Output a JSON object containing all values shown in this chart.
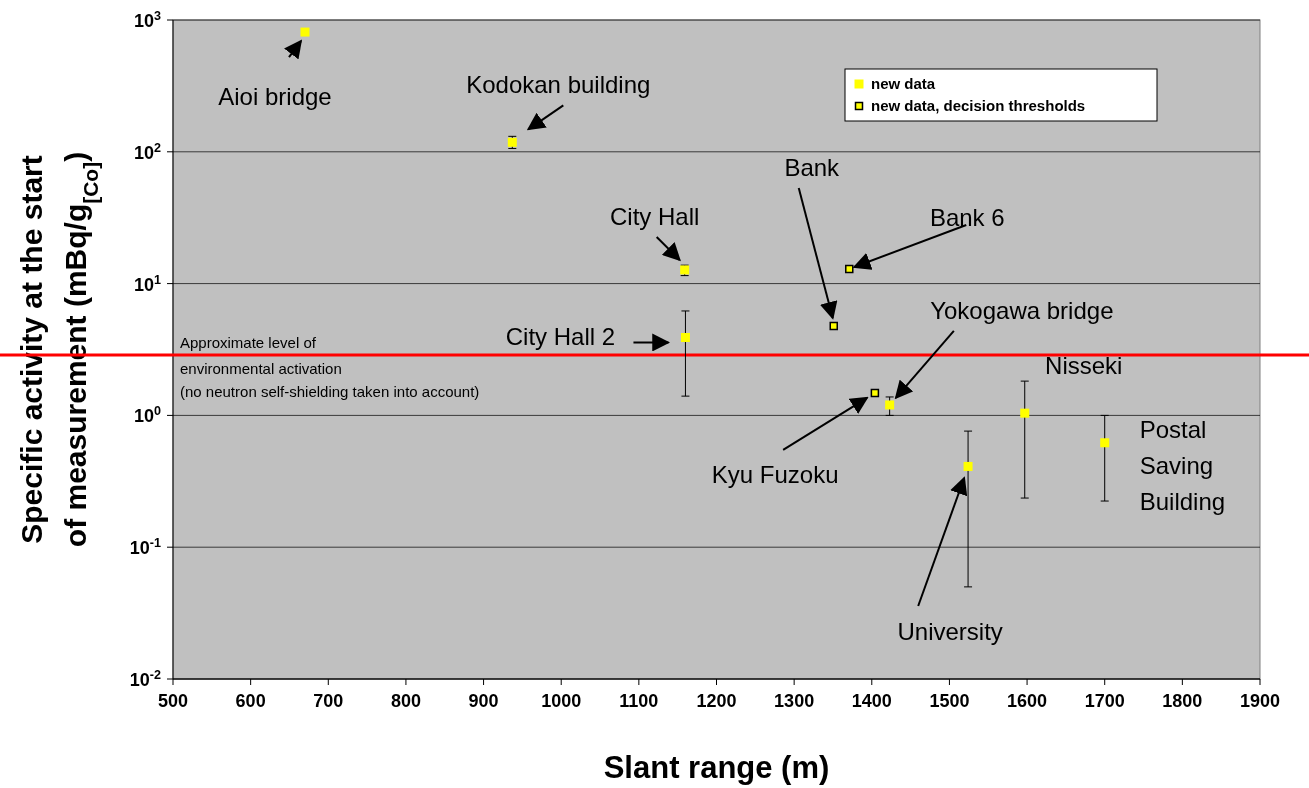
{
  "chart_data": {
    "type": "scatter",
    "xlabel": "Slant range (m)",
    "ylabel": "Specific activity at the start of measurement (mBq/g$_{[Co]}$)",
    "xlim": [
      500,
      1900
    ],
    "xticks": [
      500,
      600,
      700,
      800,
      900,
      1000,
      1100,
      1200,
      1300,
      1400,
      1500,
      1600,
      1700,
      1800,
      1900
    ],
    "ylim": [
      0.01,
      1000
    ],
    "yticks": [
      {
        "value": 0.01,
        "label": "10$^{-2}$"
      },
      {
        "value": 0.1,
        "label": "10$^{-1}$"
      },
      {
        "value": 1,
        "label": "10$^{0}$"
      },
      {
        "value": 10,
        "label": "10$^{1}$"
      },
      {
        "value": 100,
        "label": "10$^{2}$"
      },
      {
        "value": 1000,
        "label": "10$^{3}$"
      }
    ],
    "log": "y",
    "grid": "y",
    "legend": "top right",
    "marker": "square",
    "series": [
      {
        "name": "new data",
        "color": "#ffff00",
        "x": [
          670,
          937,
          1159,
          1160,
          1423,
          1524,
          1597,
          1700
        ],
        "values": [
          810,
          118,
          12.7,
          3.9,
          1.2,
          0.41,
          1.04,
          0.62
        ],
        "errors": [
          null,
          [
            106,
            131
          ],
          [
            11.5,
            13.8
          ],
          [
            1.4,
            6.2
          ],
          [
            1.0,
            1.38
          ],
          [
            0.05,
            0.76
          ],
          [
            0.236,
            1.82
          ],
          [
            0.224,
            1.0
          ]
        ]
      },
      {
        "name": "new data, decision thresholds",
        "color": "#ffff00",
        "x": [
          1351,
          1371,
          1404
        ],
        "values": [
          4.76,
          12.9,
          1.48
        ]
      }
    ],
    "ref_lines": [
      {
        "axis": "y",
        "value": 2.87,
        "label": "Approximate level of\nenvironmental activation\n(no neutron self-shielding taken into account)",
        "color": "#ff0000"
      }
    ],
    "annotations": [
      {
        "text": "Aioi bridge",
        "x": 670,
        "y": 810
      },
      {
        "text": "Kodokan building",
        "x": 937,
        "y": 118
      },
      {
        "text": "City Hall",
        "x": 1159,
        "y": 12.7
      },
      {
        "text": "City Hall 2",
        "x": 1160,
        "y": 3.9
      },
      {
        "text": "Bank",
        "x": 1351,
        "y": 4.76
      },
      {
        "text": "Bank 6",
        "x": 1371,
        "y": 12.9
      },
      {
        "text": "Yokogawa bridge",
        "x": 1431,
        "y": 1.36
      },
      {
        "text": "Kyu Fuzoku",
        "x": 1394,
        "y": 1.36
      },
      {
        "text": "Nisseki",
        "x": 1597,
        "y": 1.04
      },
      {
        "text": "Postal\nSaving\nBuilding",
        "x": 1700,
        "y": 0.62
      },
      {
        "text": "University",
        "x": 1519,
        "y": 0.335
      }
    ]
  }
}
